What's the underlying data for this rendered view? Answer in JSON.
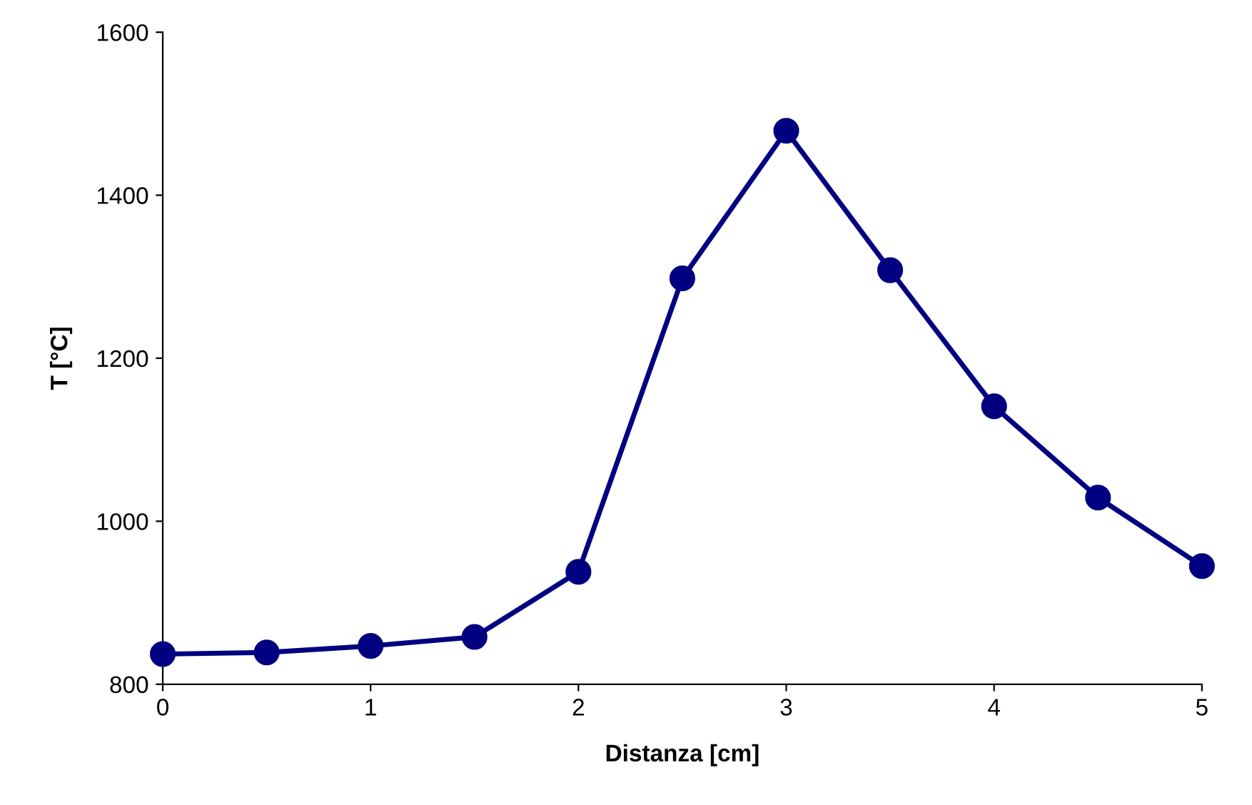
{
  "chart_data": {
    "type": "line",
    "xlabel": "Distanza [cm]",
    "ylabel": "T [°C]",
    "x": [
      0,
      0.5,
      1,
      1.5,
      2,
      2.5,
      3,
      3.5,
      4,
      4.5,
      5
    ],
    "series": [
      {
        "color": "#000080",
        "values": [
          837,
          839,
          847,
          858,
          938,
          1298,
          1479,
          1308,
          1141,
          1029,
          945
        ]
      }
    ],
    "xlim": [
      0,
      5
    ],
    "xticks": [
      0,
      1,
      2,
      3,
      4,
      5
    ],
    "ylim": [
      800,
      1600
    ],
    "yticks": [
      800,
      1000,
      1200,
      1400,
      1600
    ],
    "grid": false,
    "legend": false,
    "marker": "circle",
    "line_style": "solid"
  }
}
